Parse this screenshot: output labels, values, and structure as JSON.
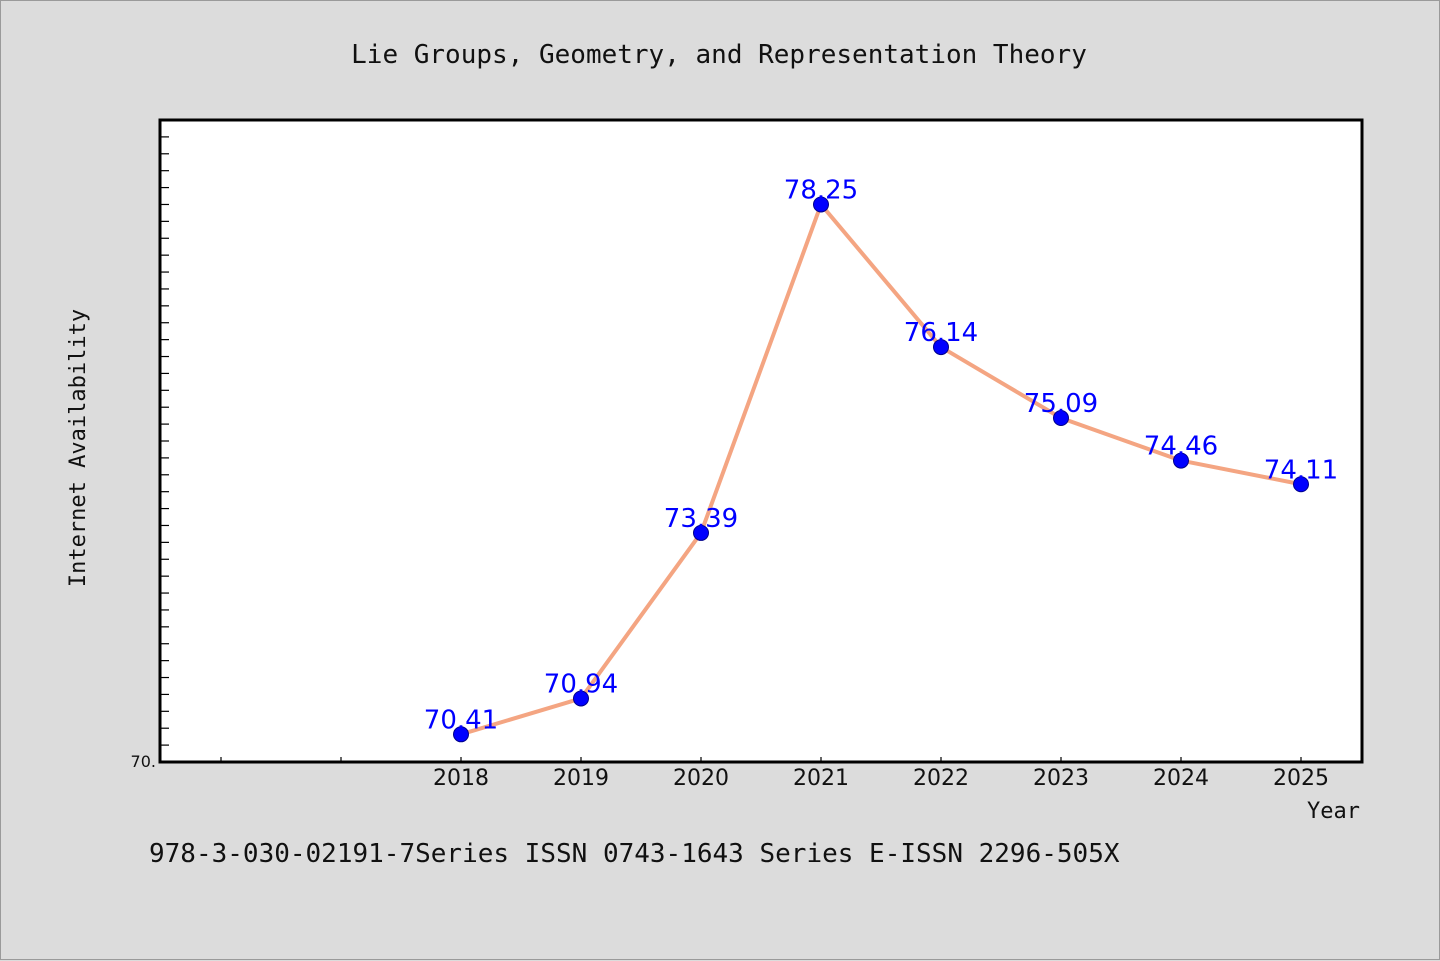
{
  "chart_data": {
    "type": "line",
    "title": "Lie Groups, Geometry, and Representation Theory",
    "xlabel": "Year",
    "ylabel": "Internet Availability",
    "categories": [
      "2018",
      "2019",
      "2020",
      "2021",
      "2022",
      "2023",
      "2024",
      "2025"
    ],
    "series": [
      {
        "values": [
          70.41,
          70.94,
          73.39,
          78.25,
          76.14,
          75.09,
          74.46,
          74.11
        ],
        "data_labels": [
          "70.41",
          "70.94",
          "73.39",
          "78.25",
          "76.14",
          "75.09",
          "74.46",
          "74.11"
        ],
        "line_color": "#f4a582",
        "marker_color": "#0000ff"
      }
    ],
    "ylim": [
      70,
      79.5
    ],
    "y_tick_labels": [
      "70."
    ],
    "grid": false,
    "legend": "none",
    "footer": "978-3-030-02191-7Series ISSN 0743-1643 Series E-ISSN 2296-505X"
  }
}
